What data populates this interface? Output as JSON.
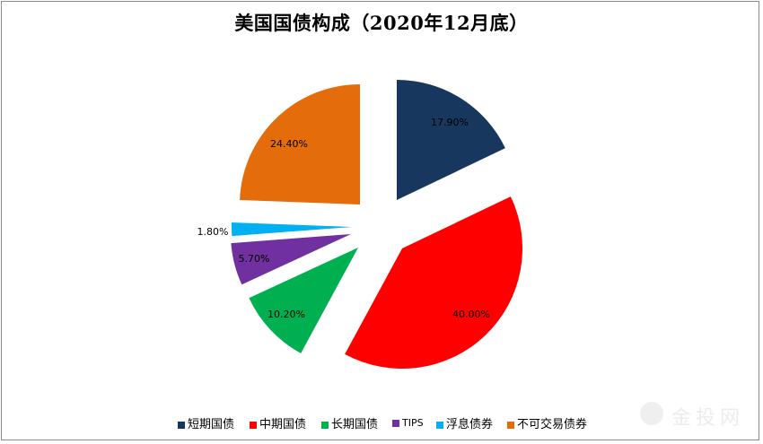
{
  "chart_data": {
    "type": "pie",
    "title": "美国国债构成（2020年12月底）",
    "categories": [
      "短期国债",
      "中期国债",
      "长期国债",
      "TIPS",
      "浮息债券",
      "不可交易债券"
    ],
    "values": [
      17.9,
      40.0,
      10.2,
      5.7,
      1.8,
      24.4
    ],
    "labels": [
      "17.90%",
      "40.00%",
      "10.20%",
      "5.70%",
      "1.80%",
      "24.40%"
    ],
    "colors": [
      "#17375E",
      "#FF0000",
      "#00B050",
      "#7030A0",
      "#00B0F0",
      "#E46C0A"
    ],
    "exploded": true,
    "legend_position": "bottom",
    "start_angle": 0,
    "direction": "clockwise"
  },
  "title": "美国国债构成（2020年12月底）",
  "legend": {
    "items": [
      {
        "label": "短期国债",
        "color": "#17375E"
      },
      {
        "label": "中期国债",
        "color": "#FF0000"
      },
      {
        "label": "长期国债",
        "color": "#00B050"
      },
      {
        "label": "TIPS",
        "color": "#7030A0"
      },
      {
        "label": "浮息债券",
        "color": "#00B0F0"
      },
      {
        "label": "不可交易债券",
        "color": "#E46C0A"
      }
    ]
  },
  "watermark": {
    "text": "金投网"
  }
}
